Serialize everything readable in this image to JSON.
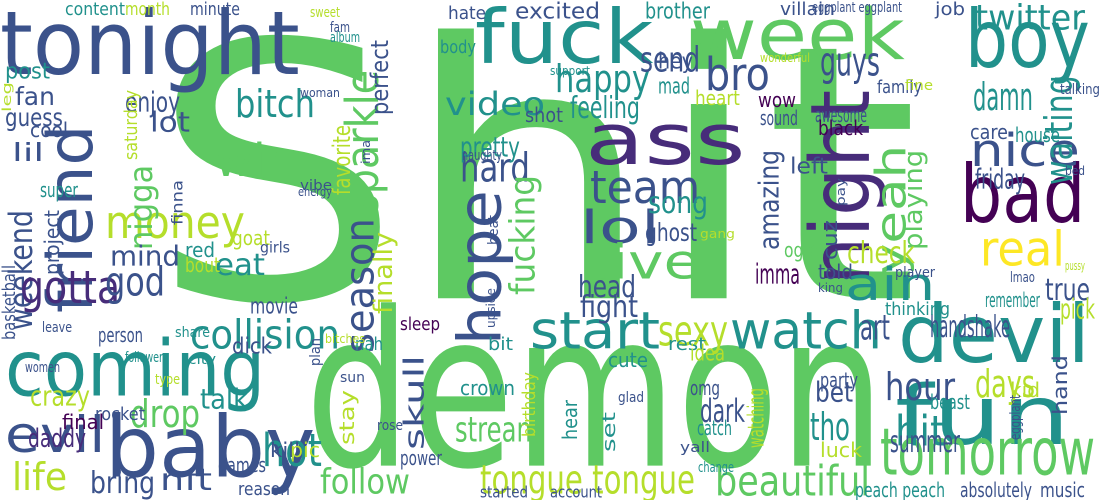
{
  "word_cloud": {
    "palette": [
      "#440154",
      "#3b528b",
      "#21918c",
      "#5ec962",
      "#fde725"
    ],
    "words": [
      {
        "text": "Shit",
        "color": "#5ec962"
      },
      {
        "text": "demon",
        "color": "#5ec962"
      },
      {
        "text": "tonight",
        "color": "#3b528b"
      },
      {
        "text": "coming",
        "color": "#21918c"
      },
      {
        "text": "baby",
        "color": "#3b528b"
      },
      {
        "text": "fuck",
        "color": "#21918c"
      },
      {
        "text": "week",
        "color": "#5ec962"
      },
      {
        "text": "boy",
        "color": "#21918c"
      },
      {
        "text": "ass",
        "color": "#472c7a"
      },
      {
        "text": "night",
        "color": "#472c7a"
      },
      {
        "text": "bad",
        "color": "#440154"
      },
      {
        "text": "hope",
        "color": "#3b528b"
      },
      {
        "text": "friend",
        "color": "#3b528b"
      },
      {
        "text": "devil",
        "color": "#21918c"
      },
      {
        "text": "fun",
        "color": "#21918c"
      },
      {
        "text": "nice",
        "color": "#3b528b"
      },
      {
        "text": "yeah",
        "color": "#5ec962"
      },
      {
        "text": "ain",
        "color": "#21918c"
      },
      {
        "text": "real",
        "color": "#fde725"
      },
      {
        "text": "watch",
        "color": "#21918c"
      },
      {
        "text": "start",
        "color": "#21918c"
      },
      {
        "text": "season",
        "color": "#3b528b"
      },
      {
        "text": "sparkle",
        "color": "#5ec962"
      },
      {
        "text": "money",
        "color": "#b5de2b"
      },
      {
        "text": "win",
        "color": "#5ec962"
      },
      {
        "text": "nigga",
        "color": "#5ec962"
      },
      {
        "text": "bitch",
        "color": "#21918c"
      },
      {
        "text": "weekend",
        "color": "#3b528b"
      },
      {
        "text": "gotta",
        "color": "#472c7a"
      },
      {
        "text": "god",
        "color": "#3b528b"
      },
      {
        "text": "mind",
        "color": "#3b528b"
      },
      {
        "text": "eat",
        "color": "#21918c"
      },
      {
        "text": "lol",
        "color": "#3b528b"
      },
      {
        "text": "live",
        "color": "#5ec962"
      },
      {
        "text": "team",
        "color": "#3b528b"
      },
      {
        "text": "hard",
        "color": "#3b528b"
      },
      {
        "text": "song",
        "color": "#21918c"
      },
      {
        "text": "happy",
        "color": "#21918c"
      },
      {
        "text": "bro",
        "color": "#3b528b"
      },
      {
        "text": "guys",
        "color": "#3b528b"
      },
      {
        "text": "video",
        "color": "#21918c"
      },
      {
        "text": "collision",
        "color": "#21918c"
      },
      {
        "text": "finally",
        "color": "#b5de2b"
      },
      {
        "text": "fucking",
        "color": "#5ec962"
      },
      {
        "text": "sexy",
        "color": "#b5de2b"
      },
      {
        "text": "evil",
        "color": "#3b528b"
      },
      {
        "text": "crazy",
        "color": "#b5de2b"
      },
      {
        "text": "daddy",
        "color": "#472c7a"
      },
      {
        "text": "life",
        "color": "#b5de2b"
      },
      {
        "text": "bring",
        "color": "#3b528b"
      },
      {
        "text": "nft",
        "color": "#3b528b"
      },
      {
        "text": "hot",
        "color": "#21918c"
      },
      {
        "text": "follow",
        "color": "#5ec962"
      },
      {
        "text": "drop",
        "color": "#5ec962"
      },
      {
        "text": "talk",
        "color": "#21918c"
      },
      {
        "text": "tongue tongue",
        "color": "#b5de2b"
      },
      {
        "text": "beautiful",
        "color": "#5ec962"
      },
      {
        "text": "tomorrow",
        "color": "#5ec962"
      },
      {
        "text": "hour",
        "color": "#3b528b"
      },
      {
        "text": "hit",
        "color": "#21918c"
      },
      {
        "text": "tho",
        "color": "#21918c"
      },
      {
        "text": "days",
        "color": "#b5de2b"
      },
      {
        "text": "amazing",
        "color": "#3b528b"
      },
      {
        "text": "twitter",
        "color": "#21918c"
      },
      {
        "text": "damn",
        "color": "#21918c"
      },
      {
        "text": "waiting",
        "color": "#21918c"
      },
      {
        "text": "friday",
        "color": "#3b528b"
      },
      {
        "text": "playing",
        "color": "#5ec962"
      },
      {
        "text": "check",
        "color": "#b5de2b"
      },
      {
        "text": "true",
        "color": "#3b528b"
      },
      {
        "text": "pick",
        "color": "#b5de2b"
      },
      {
        "text": "handshake",
        "color": "#3b528b"
      },
      {
        "text": "art",
        "color": "#3b528b"
      },
      {
        "text": "stream",
        "color": "#5ec962"
      },
      {
        "text": "skull",
        "color": "#3b528b"
      },
      {
        "text": "dark",
        "color": "#3b528b"
      },
      {
        "text": "bet",
        "color": "#3b528b"
      },
      {
        "text": "head",
        "color": "#3b528b"
      },
      {
        "text": "fight",
        "color": "#3b528b"
      },
      {
        "text": "feeling",
        "color": "#21918c"
      },
      {
        "text": "send",
        "color": "#3b528b"
      },
      {
        "text": "pretty",
        "color": "#21918c"
      },
      {
        "text": "imma",
        "color": "#440154"
      },
      {
        "text": "summer",
        "color": "#3b528b"
      },
      {
        "text": "enjoy",
        "color": "#3b528b"
      },
      {
        "text": "lot",
        "color": "#3b528b"
      },
      {
        "text": "fan",
        "color": "#3b528b"
      },
      {
        "text": "guess",
        "color": "#3b528b"
      },
      {
        "text": "lil",
        "color": "#3b528b"
      },
      {
        "text": "post",
        "color": "#21918c"
      },
      {
        "text": "content",
        "color": "#21918c"
      },
      {
        "text": "month",
        "color": "#b5de2b"
      },
      {
        "text": "minute",
        "color": "#3b528b"
      },
      {
        "text": "excited",
        "color": "#3b528b"
      },
      {
        "text": "brother",
        "color": "#21918c"
      },
      {
        "text": "hate",
        "color": "#3b528b"
      },
      {
        "text": "villain",
        "color": "#3b528b"
      },
      {
        "text": "job",
        "color": "#3b528b"
      },
      {
        "text": "hey",
        "color": "#3b528b"
      },
      {
        "text": "mad",
        "color": "#21918c"
      },
      {
        "text": "shot",
        "color": "#3b528b"
      },
      {
        "text": "heart",
        "color": "#b5de2b"
      },
      {
        "text": "body",
        "color": "#21918c"
      },
      {
        "text": "wow",
        "color": "#440154"
      },
      {
        "text": "sound",
        "color": "#3b528b"
      },
      {
        "text": "awesome",
        "color": "#3b528b"
      },
      {
        "text": "black",
        "color": "#440154"
      },
      {
        "text": "family",
        "color": "#3b528b"
      },
      {
        "text": "care",
        "color": "#3b528b"
      },
      {
        "text": "house",
        "color": "#21918c"
      },
      {
        "text": "remember",
        "color": "#21918c"
      },
      {
        "text": "cuz",
        "color": "#3b528b"
      },
      {
        "text": "left",
        "color": "#3b528b"
      },
      {
        "text": "told",
        "color": "#3b528b"
      },
      {
        "text": "ogre",
        "color": "#5ec962"
      },
      {
        "text": "ghost",
        "color": "#3b528b"
      },
      {
        "text": "perfect",
        "color": "#3b528b"
      },
      {
        "text": "favorite",
        "color": "#b5de2b"
      },
      {
        "text": "movie",
        "color": "#3b528b"
      },
      {
        "text": "dick",
        "color": "#3b528b"
      },
      {
        "text": "cool",
        "color": "#3b528b"
      },
      {
        "text": "saturday",
        "color": "#b5de2b"
      },
      {
        "text": "super",
        "color": "#21918c"
      },
      {
        "text": "project",
        "color": "#3b528b"
      },
      {
        "text": "basketball",
        "color": "#3b528b"
      },
      {
        "text": "goat",
        "color": "#b5de2b"
      },
      {
        "text": "red",
        "color": "#21918c"
      },
      {
        "text": "bout",
        "color": "#b5de2b"
      },
      {
        "text": "girls",
        "color": "#3b528b"
      },
      {
        "text": "finna",
        "color": "#3b528b"
      },
      {
        "text": "sleep",
        "color": "#440154"
      },
      {
        "text": "nah",
        "color": "#21918c"
      },
      {
        "text": "bit",
        "color": "#21918c"
      },
      {
        "text": "rest",
        "color": "#21918c"
      },
      {
        "text": "cute",
        "color": "#21918c"
      },
      {
        "text": "idea",
        "color": "#b5de2b"
      },
      {
        "text": "crown",
        "color": "#21918c"
      },
      {
        "text": "omg",
        "color": "#3b528b"
      },
      {
        "text": "party",
        "color": "#3b528b"
      },
      {
        "text": "beast",
        "color": "#21918c"
      },
      {
        "text": "kid",
        "color": "#b5de2b"
      },
      {
        "text": "watching",
        "color": "#b5de2b"
      },
      {
        "text": "catch",
        "color": "#21918c"
      },
      {
        "text": "set",
        "color": "#21918c"
      },
      {
        "text": "hear",
        "color": "#21918c"
      },
      {
        "text": "birthday",
        "color": "#b5de2b"
      },
      {
        "text": "stay",
        "color": "#b5de2b"
      },
      {
        "text": "games",
        "color": "#3b528b"
      },
      {
        "text": "kill",
        "color": "#3b528b"
      },
      {
        "text": "rocket",
        "color": "#3b528b"
      },
      {
        "text": "final",
        "color": "#440154"
      },
      {
        "text": "person",
        "color": "#3b528b"
      },
      {
        "text": "pic",
        "color": "#b5de2b"
      },
      {
        "text": "power",
        "color": "#3b528b"
      },
      {
        "text": "reason",
        "color": "#3b528b"
      },
      {
        "text": "started",
        "color": "#3b528b"
      },
      {
        "text": "account",
        "color": "#3b528b"
      },
      {
        "text": "luck",
        "color": "#b5de2b"
      },
      {
        "text": "peach peach",
        "color": "#21918c"
      },
      {
        "text": "absolutely",
        "color": "#3b528b"
      },
      {
        "text": "music",
        "color": "#3b528b"
      },
      {
        "text": "hand",
        "color": "#3b528b"
      },
      {
        "text": "thinking",
        "color": "#21918c"
      },
      {
        "text": "eggplant eggplant",
        "color": "#3b528b"
      },
      {
        "text": "wonderful",
        "color": "#b5de2b"
      },
      {
        "text": "fine",
        "color": "#b5de2b"
      },
      {
        "text": "talking",
        "color": "#3b528b"
      },
      {
        "text": "bed",
        "color": "#3b528b"
      },
      {
        "text": "player",
        "color": "#3b528b"
      },
      {
        "text": "pussy",
        "color": "#b5de2b"
      },
      {
        "text": "lmao",
        "color": "#3b528b"
      },
      {
        "text": "king",
        "color": "#3b528b"
      },
      {
        "text": "pay",
        "color": "#3b528b"
      },
      {
        "text": "gang",
        "color": "#b5de2b"
      },
      {
        "text": "beat",
        "color": "#3b528b"
      },
      {
        "text": "naughty",
        "color": "#3b528b"
      },
      {
        "text": "vibe",
        "color": "#3b528b"
      },
      {
        "text": "energy",
        "color": "#3b528b"
      },
      {
        "text": "ima",
        "color": "#3b528b"
      },
      {
        "text": "sweet",
        "color": "#b5de2b"
      },
      {
        "text": "fam",
        "color": "#3b528b"
      },
      {
        "text": "album",
        "color": "#21918c"
      },
      {
        "text": "support",
        "color": "#21918c"
      },
      {
        "text": "woman",
        "color": "#3b528b"
      },
      {
        "text": "leg",
        "color": "#b5de2b"
      },
      {
        "text": "follower",
        "color": "#21918c"
      },
      {
        "text": "share",
        "color": "#21918c"
      },
      {
        "text": "leave",
        "color": "#3b528b"
      },
      {
        "text": "bitches",
        "color": "#b5de2b"
      },
      {
        "text": "plan",
        "color": "#3b528b"
      },
      {
        "text": "upside",
        "color": "#3b528b"
      },
      {
        "text": "city",
        "color": "#21918c"
      },
      {
        "text": "women",
        "color": "#3b528b"
      },
      {
        "text": "type",
        "color": "#b5de2b"
      },
      {
        "text": "sun",
        "color": "#3b528b"
      },
      {
        "text": "rose",
        "color": "#3b528b"
      },
      {
        "text": "glad",
        "color": "#3b528b"
      },
      {
        "text": "yall",
        "color": "#3b528b"
      },
      {
        "text": "change",
        "color": "#21918c"
      },
      {
        "text": "eggplant",
        "color": "#3b528b"
      }
    ]
  }
}
